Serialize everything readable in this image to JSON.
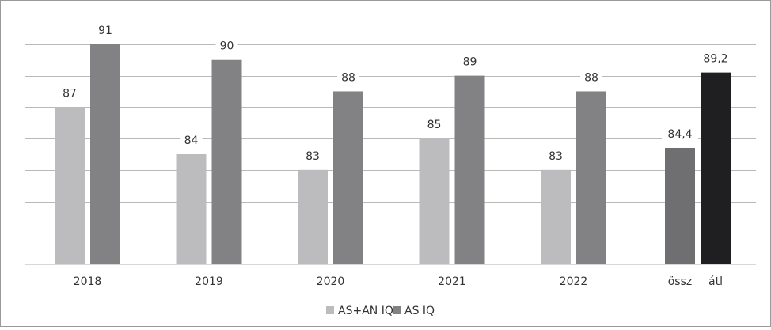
{
  "chart_data": {
    "type": "bar",
    "categories": [
      "2018",
      "2019",
      "2020",
      "2021",
      "2022",
      "össz",
      "átl"
    ],
    "series": [
      {
        "name": "AS+AN IQ",
        "values": [
          87,
          84,
          83,
          85,
          83,
          84.4,
          null
        ],
        "labels": [
          "87",
          "84",
          "83",
          "85",
          "83",
          "84,4",
          ""
        ]
      },
      {
        "name": "AS IQ",
        "values": [
          91,
          90,
          88,
          89,
          88,
          null,
          89.2
        ],
        "labels": [
          "91",
          "90",
          "88",
          "89",
          "88",
          "",
          "89,2"
        ]
      }
    ],
    "bar_colors": {
      "AS+AN IQ": "#bcbcbe",
      "AS IQ": "#828285",
      "summary_AS+AN IQ": "#6f6f72",
      "summary_AS IQ": "#1f1f21"
    },
    "ylim": [
      77,
      92
    ],
    "grid": true,
    "legend_position": "bottom"
  }
}
